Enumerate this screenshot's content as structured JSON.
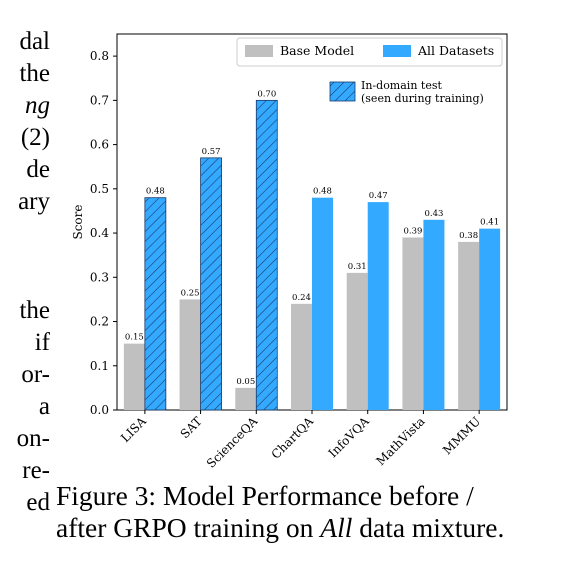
{
  "left_column_text": [
    {
      "text": "dal",
      "italic": false
    },
    {
      "text": "the",
      "italic": false
    },
    {
      "text": "ng",
      "italic": true
    },
    {
      "text": "(2)",
      "italic": false
    },
    {
      "text": "de",
      "italic": false
    },
    {
      "text": "ary",
      "italic": false
    },
    {
      "text": "",
      "italic": false
    },
    {
      "text": "the",
      "italic": false
    },
    {
      "text": "if",
      "italic": false
    },
    {
      "text": "or-",
      "italic": false
    },
    {
      "text": "a",
      "italic": false
    },
    {
      "text": "on-",
      "italic": false
    },
    {
      "text": "re-",
      "italic": false
    },
    {
      "text": "ed",
      "italic": false
    }
  ],
  "caption": {
    "line1": "Figure 3:  Model Performance before /",
    "line2_pre": "after GRPO training on ",
    "line2_italic": "All",
    "line2_post": " data mixture."
  },
  "chart_data": {
    "type": "bar",
    "title": "",
    "xlabel": "",
    "ylabel": "Score",
    "ylim": [
      0,
      0.85
    ],
    "yticks": [
      0.0,
      0.1,
      0.2,
      0.3,
      0.4,
      0.5,
      0.6,
      0.7,
      0.8
    ],
    "ytick_labels": [
      "0.0",
      "0.1",
      "0.2",
      "0.3",
      "0.4",
      "0.5",
      "0.6",
      "0.7",
      "0.8"
    ],
    "categories": [
      "LISA",
      "SAT",
      "ScienceQA",
      "ChartQA",
      "InfoVQA",
      "MathVista",
      "MMMU"
    ],
    "series": [
      {
        "name": "Base Model",
        "color": "#c0c0c0",
        "values": [
          0.15,
          0.25,
          0.05,
          0.24,
          0.31,
          0.39,
          0.38
        ],
        "labels": [
          "0.15",
          "0.25",
          "0.05",
          "0.24",
          "0.31",
          "0.39",
          "0.38"
        ]
      },
      {
        "name": "All Datasets",
        "color": "#33aaff",
        "values": [
          0.48,
          0.57,
          0.7,
          0.48,
          0.47,
          0.43,
          0.41
        ],
        "labels": [
          "0.48",
          "0.57",
          "0.70",
          "0.48",
          "0.47",
          "0.43",
          "0.41"
        ]
      }
    ],
    "hatched_categories": [
      "LISA",
      "SAT",
      "ScienceQA"
    ],
    "legend": {
      "placement": "top-right",
      "entries": [
        "Base Model",
        "All Datasets"
      ],
      "hatch_entry_line1": "In-domain test",
      "hatch_entry_line2": "(seen during training)"
    },
    "grid": false
  }
}
